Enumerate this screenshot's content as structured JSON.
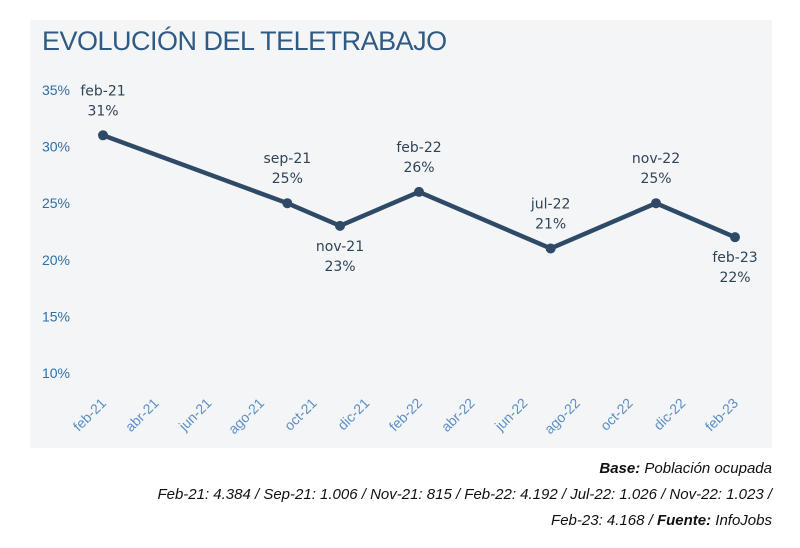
{
  "chart_data": {
    "type": "line",
    "title": "EVOLUCIÓN DEL TELETRABAJO",
    "x_ticks": [
      "feb-21",
      "abr-21",
      "jun-21",
      "ago-21",
      "oct-21",
      "dic-21",
      "feb-22",
      "abr-22",
      "jun-22",
      "ago-22",
      "oct-22",
      "dic-22",
      "feb-23"
    ],
    "y_ticks": [
      "35%",
      "30%",
      "25%",
      "20%",
      "15%",
      "10%"
    ],
    "ylim": [
      10,
      35
    ],
    "xlim": [
      "feb-21",
      "feb-23"
    ],
    "grid": false,
    "series": [
      {
        "color": "#2e4a67",
        "points": [
          {
            "x": "feb-21",
            "y": 31,
            "label": "feb-21",
            "value_label": "31%",
            "label_position": "above"
          },
          {
            "x": "sep-21",
            "y": 25,
            "label": "sep-21",
            "value_label": "25%",
            "label_position": "above"
          },
          {
            "x": "nov-21",
            "y": 23,
            "label": "nov-21",
            "value_label": "23%",
            "label_position": "below"
          },
          {
            "x": "feb-22",
            "y": 26,
            "label": "feb-22",
            "value_label": "26%",
            "label_position": "above"
          },
          {
            "x": "jul-22",
            "y": 21,
            "label": "jul-22",
            "value_label": "21%",
            "label_position": "above"
          },
          {
            "x": "nov-22",
            "y": 25,
            "label": "nov-22",
            "value_label": "25%",
            "label_position": "above"
          },
          {
            "x": "feb-23",
            "y": 22,
            "label": "feb-23",
            "value_label": "22%",
            "label_position": "below"
          }
        ]
      }
    ]
  },
  "footnote": {
    "base_label": "Base:",
    "base_text": " Población ocupada",
    "line2": "Feb-21: 4.384 / Sep-21: 1.006 / Nov-21: 815 / Feb-22: 4.192 / Jul-22: 1.026 / Nov-22: 1.023 /",
    "line3_text": "Feb-23: 4.168 / ",
    "source_label": "Fuente:",
    "source_text": " InfoJobs"
  }
}
